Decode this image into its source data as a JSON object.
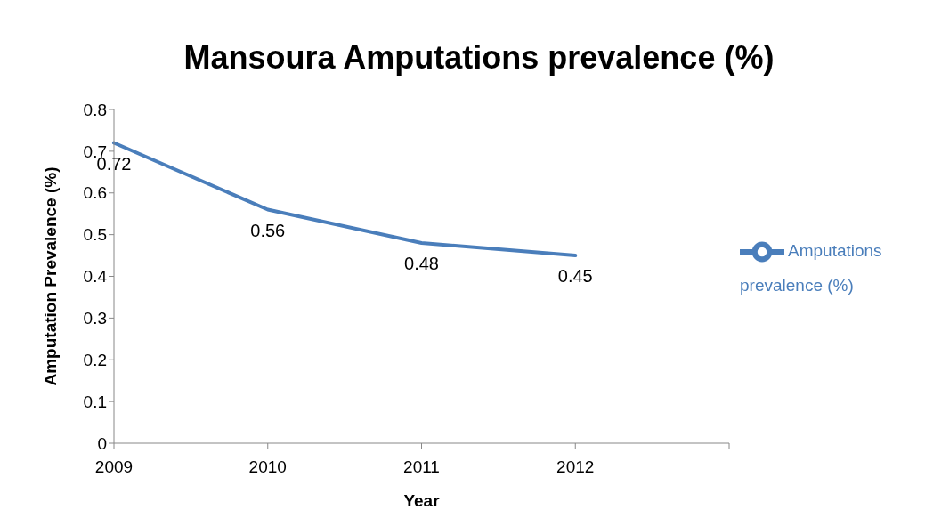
{
  "chart_data": {
    "type": "line",
    "title": "Mansoura Amputations prevalence (%)",
    "xlabel": "Year",
    "ylabel": "Amputation Prevalence (%)",
    "categories": [
      "2009",
      "2010",
      "2011",
      "2012",
      null
    ],
    "series": [
      {
        "name": "Amputations prevalence (%)",
        "color": "#4a7ebb",
        "values": [
          0.72,
          0.56,
          0.48,
          0.45,
          null
        ]
      }
    ],
    "ylim": [
      0,
      0.8
    ],
    "yticks": [
      0,
      0.1,
      0.2,
      0.3,
      0.4,
      0.5,
      0.6,
      0.7,
      0.8
    ],
    "data_labels": true,
    "legend": "right",
    "grid": false,
    "marker": "none",
    "line_style": "solid"
  }
}
